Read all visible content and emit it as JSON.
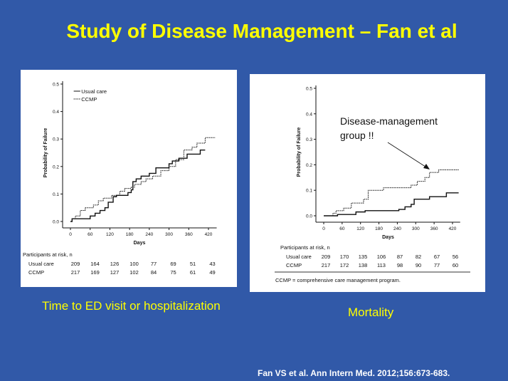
{
  "slide": {
    "title": "Study of Disease Management – Fan et al",
    "caption_left": "Time to ED visit or hospitalization",
    "caption_right": "Mortality",
    "citation": "Fan VS et al.  Ann Intern Med. 2012;156:673-683.",
    "colors": {
      "background": "#3159a8",
      "title": "#ffff00"
    }
  },
  "chart_data": [
    {
      "type": "line",
      "step": true,
      "xlabel": "Days",
      "ylabel": "Probability of Failure",
      "xticks": [
        0,
        60,
        120,
        180,
        240,
        300,
        360,
        420
      ],
      "yticks": [
        0.0,
        0.1,
        0.2,
        0.3,
        0.4,
        0.5
      ],
      "ytick_labels": [
        "0.0",
        "0.1",
        "0.2",
        "0.3",
        "0.4",
        "0.5"
      ],
      "ylim": [
        0,
        0.5
      ],
      "xlim": [
        0,
        440
      ],
      "legend": "top-left",
      "series": [
        {
          "name": "Usual care",
          "style": "solid",
          "x": [
            0,
            5,
            55,
            60,
            75,
            90,
            105,
            115,
            130,
            140,
            170,
            175,
            185,
            190,
            200,
            215,
            240,
            260,
            300,
            310,
            330,
            355,
            395,
            410
          ],
          "y": [
            0,
            0.01,
            0.01,
            0.02,
            0.03,
            0.04,
            0.05,
            0.07,
            0.09,
            0.095,
            0.095,
            0.105,
            0.115,
            0.145,
            0.155,
            0.165,
            0.175,
            0.195,
            0.21,
            0.22,
            0.23,
            0.245,
            0.26,
            0.26
          ]
        },
        {
          "name": "CCMP",
          "style": "dotted",
          "x": [
            0,
            5,
            15,
            30,
            45,
            70,
            85,
            100,
            125,
            150,
            165,
            185,
            195,
            215,
            230,
            250,
            275,
            300,
            320,
            345,
            370,
            385,
            410,
            440
          ],
          "y": [
            0,
            0.01,
            0.02,
            0.04,
            0.05,
            0.06,
            0.075,
            0.085,
            0.095,
            0.11,
            0.12,
            0.125,
            0.135,
            0.145,
            0.155,
            0.165,
            0.185,
            0.2,
            0.225,
            0.26,
            0.27,
            0.285,
            0.305,
            0.305
          ]
        }
      ],
      "risk_table": {
        "title": "Participants at risk, n",
        "rows": [
          {
            "label": "Usual care",
            "values": [
              "209",
              "164",
              "126",
              "100",
              "77",
              "69",
              "51",
              "43"
            ]
          },
          {
            "label": "CCMP",
            "values": [
              "217",
              "169",
              "127",
              "102",
              "84",
              "75",
              "61",
              "49"
            ]
          }
        ]
      }
    },
    {
      "type": "line",
      "step": true,
      "xlabel": "Days",
      "ylabel": "Probability of Failure",
      "xticks": [
        0,
        60,
        120,
        180,
        240,
        300,
        360,
        420
      ],
      "yticks": [
        0.0,
        0.1,
        0.2,
        0.3,
        0.4,
        0.5
      ],
      "ytick_labels": [
        "0.0",
        "0.1",
        "0.2",
        "0.3",
        "0.4",
        "0.5"
      ],
      "ylim": [
        0,
        0.5
      ],
      "xlim": [
        0,
        440
      ],
      "series": [
        {
          "name": "Usual care",
          "style": "solid",
          "x": [
            0,
            45,
            105,
            135,
            245,
            265,
            285,
            295,
            345,
            400,
            440
          ],
          "y": [
            0,
            0.005,
            0.015,
            0.02,
            0.025,
            0.035,
            0.045,
            0.065,
            0.075,
            0.09,
            0.09
          ]
        },
        {
          "name": "CCMP",
          "style": "dotted",
          "x": [
            0,
            30,
            40,
            65,
            90,
            130,
            145,
            195,
            285,
            305,
            330,
            345,
            375,
            440
          ],
          "y": [
            0,
            0.01,
            0.02,
            0.03,
            0.05,
            0.065,
            0.1,
            0.11,
            0.12,
            0.135,
            0.15,
            0.17,
            0.18,
            0.18
          ]
        }
      ],
      "annotation": [
        "Disease-management",
        "group !!"
      ],
      "risk_table": {
        "title": "Participants at risk, n",
        "rows": [
          {
            "label": "Usual care",
            "values": [
              "209",
              "170",
              "135",
              "106",
              "87",
              "82",
              "67",
              "56"
            ]
          },
          {
            "label": "CCMP",
            "values": [
              "217",
              "172",
              "138",
              "113",
              "98",
              "90",
              "77",
              "60"
            ]
          }
        ]
      },
      "footnote": "CCMP = comprehensive care management program."
    }
  ]
}
